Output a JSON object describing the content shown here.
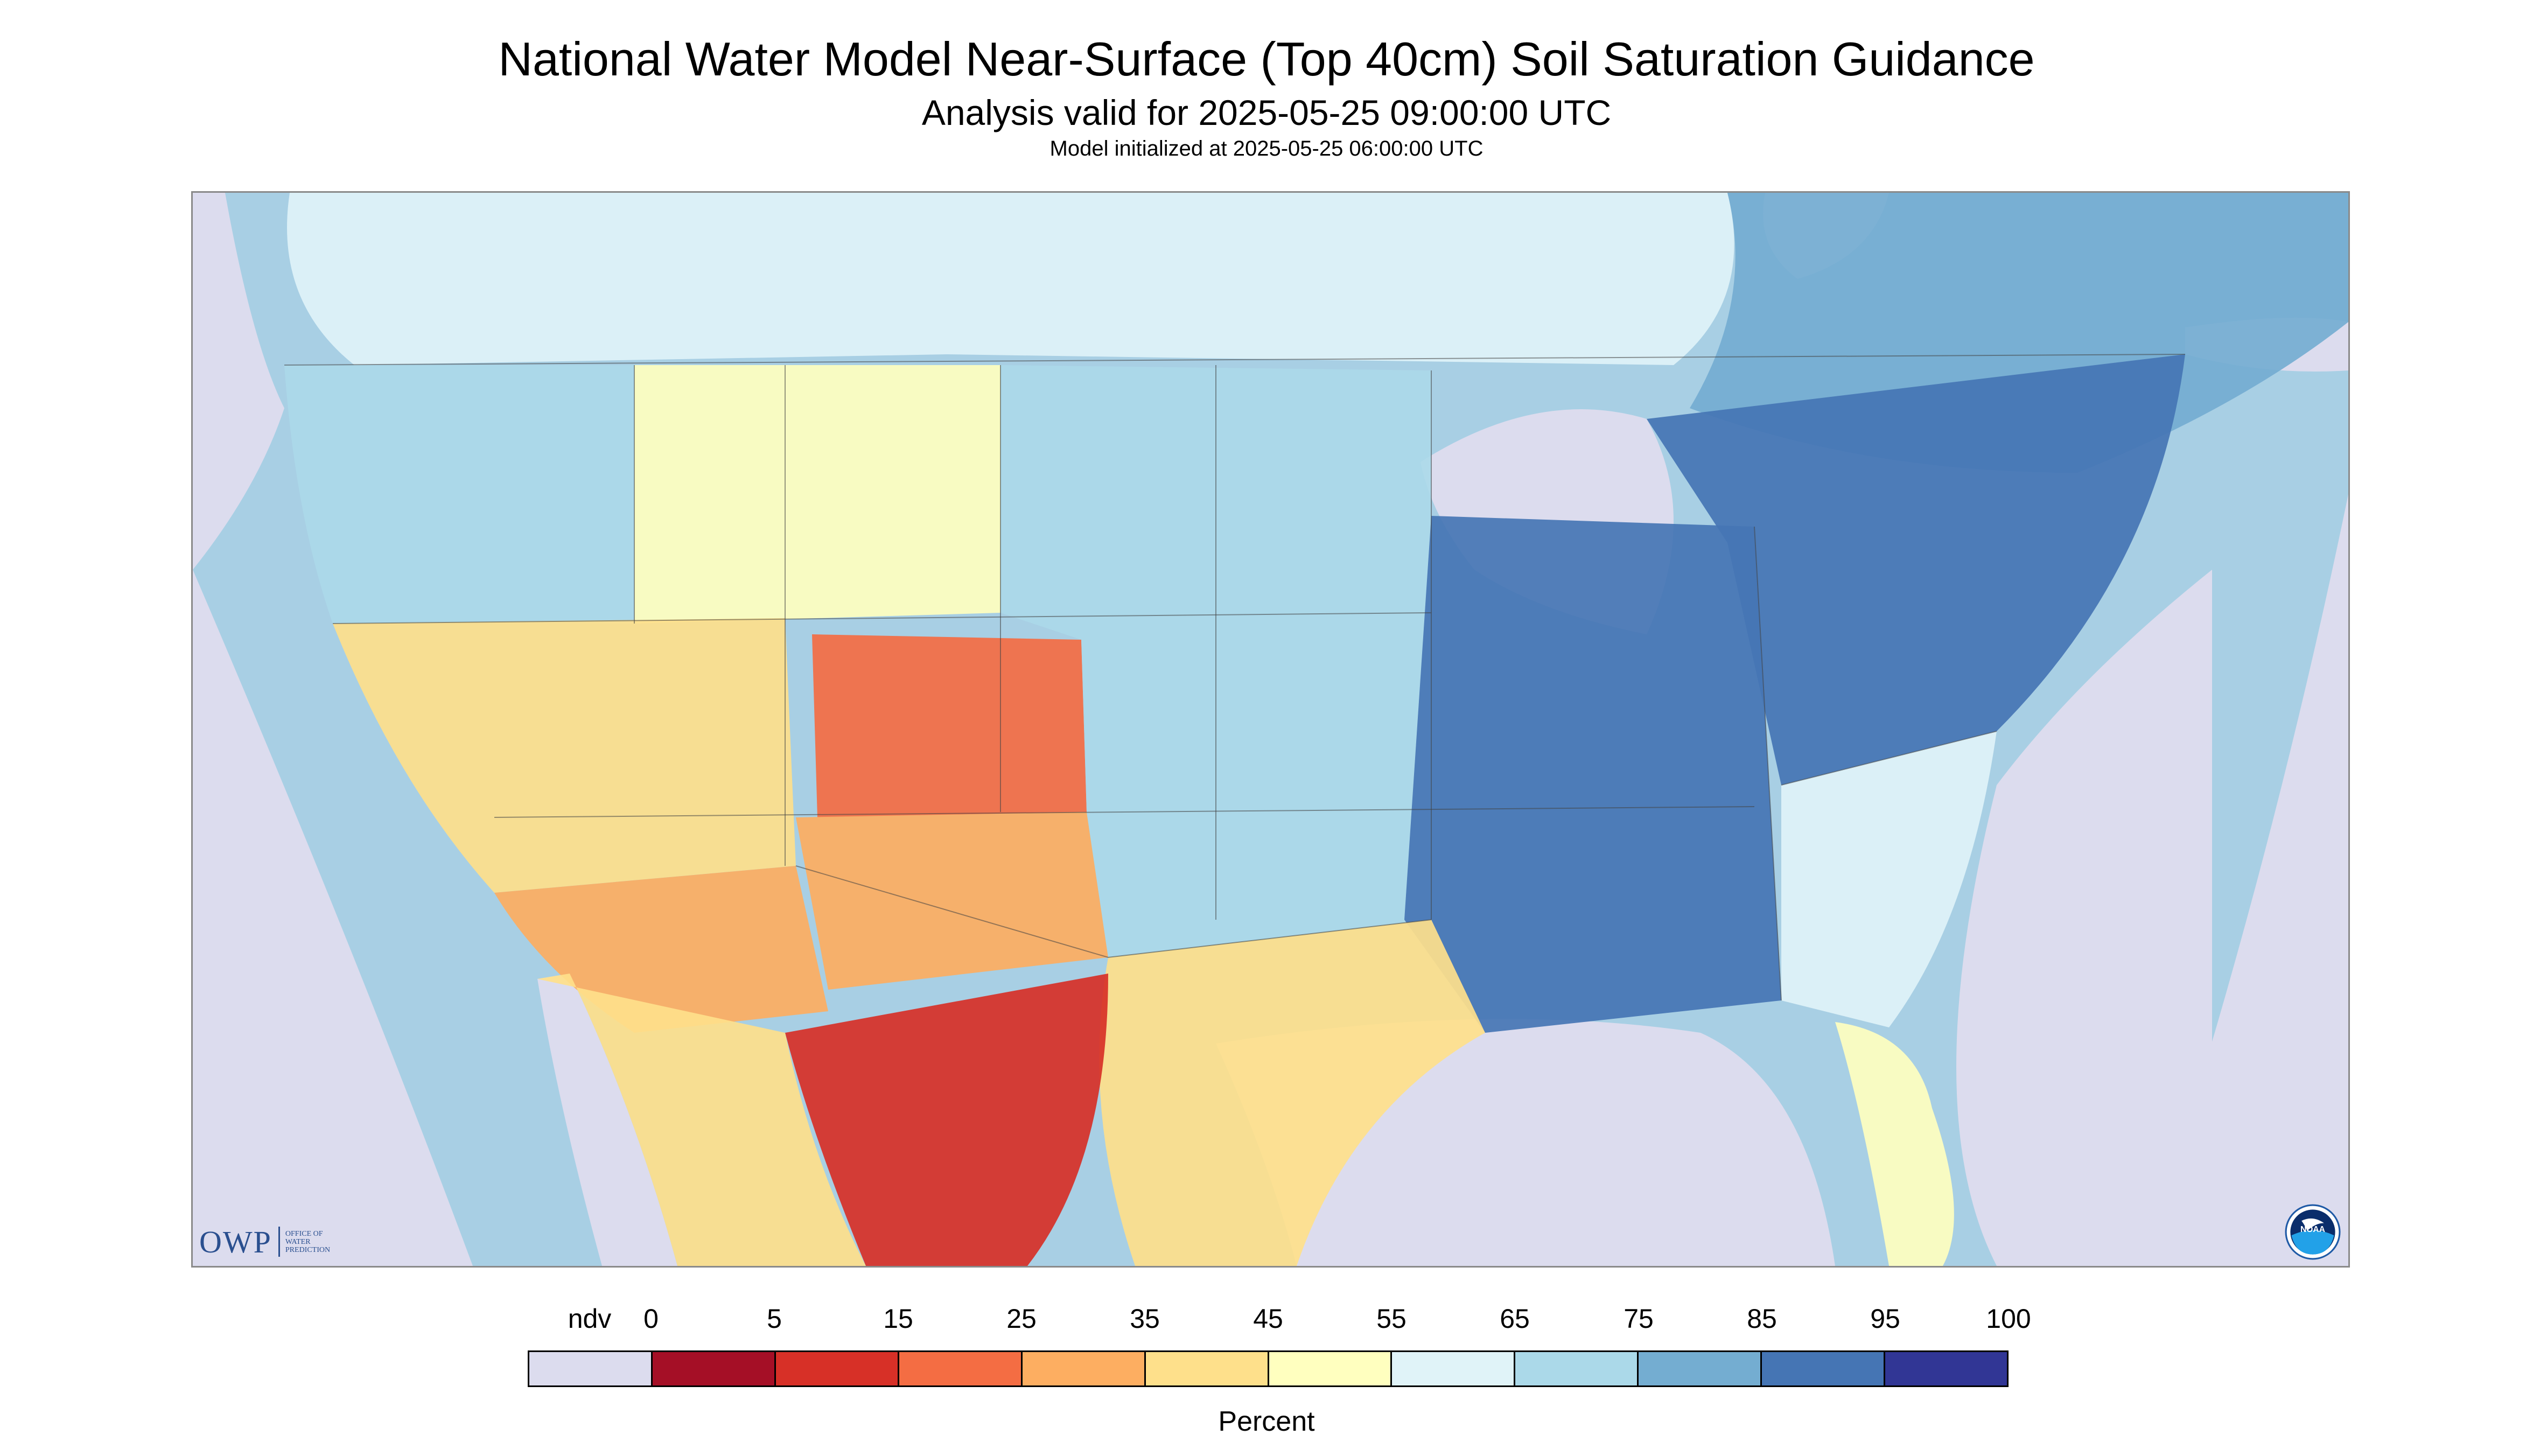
{
  "header": {
    "title": "National Water Model Near-Surface (Top 40cm) Soil Saturation Guidance",
    "subtitle": "Analysis valid for 2025-05-25 09:00:00 UTC",
    "init_line": "Model initialized at 2025-05-25 06:00:00 UTC"
  },
  "map": {
    "ndv_color": "#dcdcee",
    "background_color": "#a8cfe4",
    "region_levels": {
      "pacific_northwest": 65,
      "interior_west": 35,
      "great_basin_southwest": 25,
      "four_corners": 25,
      "colorado_rockies": 15,
      "northern_rockies": 45,
      "central_plains": 65,
      "midwest_mississippi_valley": 85,
      "ohio_valley_northeast": 85,
      "southeast_coast": 55,
      "florida": 45,
      "texas": 35,
      "northern_mexico": 5,
      "baja_sonora": 35,
      "southern_canada_prairies": 55,
      "eastern_canada": 75
    }
  },
  "logos": {
    "owp_mark": "OWP",
    "owp_name_lines": [
      "OFFICE OF",
      "WATER",
      "PREDICTION"
    ],
    "noaa_text": "NOAA",
    "noaa_icon": "noaa-seal-icon"
  },
  "legend": {
    "ndv_label": "ndv",
    "tick_labels": [
      "0",
      "5",
      "15",
      "25",
      "35",
      "45",
      "55",
      "65",
      "75",
      "85",
      "95",
      "100"
    ],
    "colors": [
      "#dcdcee",
      "#a50f26",
      "#d73027",
      "#f46d43",
      "#fdae61",
      "#fee08b",
      "#ffffbf",
      "#e0f3f8",
      "#abd9e9",
      "#74add1",
      "#4575b4",
      "#313695"
    ],
    "units": "Percent"
  }
}
